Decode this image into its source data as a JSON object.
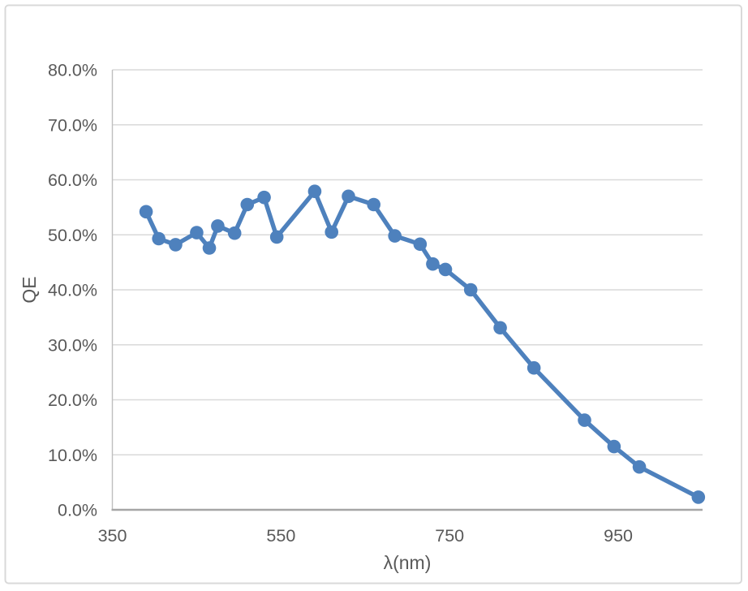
{
  "figure": {
    "background_color": "#ffffff",
    "border_color": "#d9d9d9",
    "description": "Excel-style scatter-line chart of sensor quantum efficiency versus wavelength"
  },
  "chart_data": {
    "type": "line",
    "title": "",
    "xlabel": "λ(nm)",
    "ylabel": "QE",
    "xlim": [
      350,
      1050
    ],
    "ylim_percent": [
      0,
      80
    ],
    "x_ticks": [
      350,
      550,
      750,
      950
    ],
    "y_ticks": [
      {
        "value": 0,
        "label": "0.0%"
      },
      {
        "value": 10,
        "label": "10.0%"
      },
      {
        "value": 20,
        "label": "20.0%"
      },
      {
        "value": 30,
        "label": "30.0%"
      },
      {
        "value": 40,
        "label": "40.0%"
      },
      {
        "value": 50,
        "label": "50.0%"
      },
      {
        "value": 60,
        "label": "60.0%"
      },
      {
        "value": 70,
        "label": "70.0%"
      },
      {
        "value": 80,
        "label": "80.0%"
      }
    ],
    "grid": "horizontal",
    "legend": "none",
    "series": [
      {
        "name": "QE",
        "marker": "circle",
        "points": [
          {
            "wavelength_nm": 390,
            "qe_percent": 54.2
          },
          {
            "wavelength_nm": 405,
            "qe_percent": 49.3
          },
          {
            "wavelength_nm": 425,
            "qe_percent": 48.2
          },
          {
            "wavelength_nm": 450,
            "qe_percent": 50.4
          },
          {
            "wavelength_nm": 465,
            "qe_percent": 47.6
          },
          {
            "wavelength_nm": 475,
            "qe_percent": 51.6
          },
          {
            "wavelength_nm": 495,
            "qe_percent": 50.3
          },
          {
            "wavelength_nm": 510,
            "qe_percent": 55.5
          },
          {
            "wavelength_nm": 530,
            "qe_percent": 56.8
          },
          {
            "wavelength_nm": 545,
            "qe_percent": 49.6
          },
          {
            "wavelength_nm": 590,
            "qe_percent": 57.9
          },
          {
            "wavelength_nm": 610,
            "qe_percent": 50.5
          },
          {
            "wavelength_nm": 630,
            "qe_percent": 57.0
          },
          {
            "wavelength_nm": 660,
            "qe_percent": 55.5
          },
          {
            "wavelength_nm": 685,
            "qe_percent": 49.8
          },
          {
            "wavelength_nm": 715,
            "qe_percent": 48.3
          },
          {
            "wavelength_nm": 730,
            "qe_percent": 44.7
          },
          {
            "wavelength_nm": 745,
            "qe_percent": 43.7
          },
          {
            "wavelength_nm": 775,
            "qe_percent": 40.0
          },
          {
            "wavelength_nm": 810,
            "qe_percent": 33.1
          },
          {
            "wavelength_nm": 850,
            "qe_percent": 25.8
          },
          {
            "wavelength_nm": 910,
            "qe_percent": 16.3
          },
          {
            "wavelength_nm": 945,
            "qe_percent": 11.5
          },
          {
            "wavelength_nm": 975,
            "qe_percent": 7.8
          },
          {
            "wavelength_nm": 1045,
            "qe_percent": 2.3
          }
        ]
      }
    ],
    "colors": {
      "series_line": "#4e81bd",
      "series_marker": "#4e81bd",
      "gridline": "#d9d9d9",
      "x_axis_line": "#a6a6a6",
      "y_axis_line": "#bfbfbf",
      "tick_label_text": "#595959",
      "axis_title_text": "#595959"
    }
  }
}
